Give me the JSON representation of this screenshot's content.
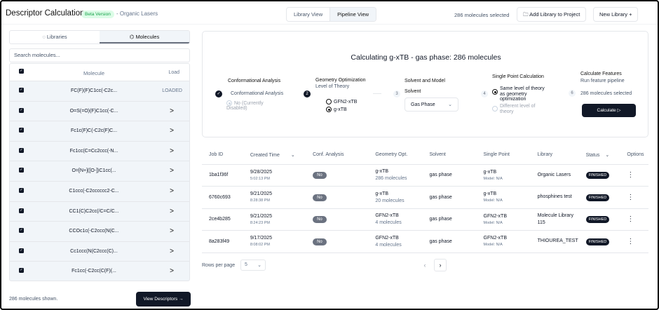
{
  "header": {
    "title": "Descriptor Calculation",
    "badge": "Beta Version",
    "subtitle": "- Organic Lasers",
    "views": [
      "Library View",
      "Pipeline View"
    ],
    "selected_count": "286 molecules selected",
    "add_library": "Add Library to Project",
    "new_library": "New Library +"
  },
  "sidebar": {
    "tabs": [
      "Libraries",
      "Molecules"
    ],
    "search_placeholder": "Search molecules...",
    "col_molecule": "Molecule",
    "col_load": "Load",
    "molecules": [
      {
        "smiles": "FC(F)(F)C1cc(-C2c...",
        "load": "LOADED"
      },
      {
        "smiles": "O=S(=O)(F)C1cc(-C...",
        "load": ">"
      },
      {
        "smiles": "Fc1c(F)C(-C2c(F)C...",
        "load": ">"
      },
      {
        "smiles": "Fc1cc(C=Cc2ccc(-N...",
        "load": ">"
      },
      {
        "smiles": "O=[N+]([O-])C1cc(...",
        "load": ">"
      },
      {
        "smiles": "C1ccc(-C2cccccc2-C...",
        "load": ">"
      },
      {
        "smiles": "CC1(C)C2cc(/C=C/C...",
        "load": ">"
      },
      {
        "smiles": "CCOc1c(-C2ccc(N(C...",
        "load": ">"
      },
      {
        "smiles": "Cc1ccc(N(C2ccc(C)...",
        "load": ">"
      },
      {
        "smiles": "Fc1cc(-C2cc(C(F)(...",
        "load": ">"
      }
    ],
    "footer": "286 molecules shown.",
    "view_descriptors": "View Descriptors →"
  },
  "pipeline": {
    "title": "Calculating g-xTB - gas phase: 286 molecules",
    "step1": {
      "title": "Conformational Analysis",
      "option": "Conformational Analysis",
      "disabled": "No (Currently Disabled)"
    },
    "step2": {
      "num": "2",
      "title": "Geometry Optimization",
      "sub": "Level of Theory",
      "options": [
        "GFN2-xTB",
        "g-xTB"
      ],
      "selected": "g-xTB"
    },
    "step3": {
      "num": "3",
      "title": "Solvent and Model",
      "label": "Solvent",
      "value": "Gas Phase"
    },
    "step4": {
      "num": "4",
      "title": "Single Point Calculation",
      "options": [
        "Same level of theory as geometry optimization",
        "Different level of theory"
      ],
      "selected": "Same level of theory as geometry optimization"
    },
    "step5": {
      "num": "6",
      "title": "Calculate Features",
      "sub": "Run feature pipeline",
      "count": "286 molecules selected",
      "button": "Calculate ▷"
    }
  },
  "jobs": {
    "columns": [
      "Job ID",
      "Created Time",
      "Conf. Analysis",
      "Geometry Opt.",
      "Solvent",
      "Single Point",
      "Library",
      "Status",
      "Options"
    ],
    "rows": [
      {
        "id": "1ba1f36f",
        "date": "9/28/2025",
        "time": "5:02:13 PM",
        "conf": "No",
        "geo": "g-xTB",
        "mols": "286 molecules",
        "solvent": "gas phase",
        "sp": "g-xTB",
        "model": "Model: N/A",
        "library": "Organic Lasers",
        "status": "FINISHED"
      },
      {
        "id": "6760c693",
        "date": "9/21/2025",
        "time": "8:28:38 PM",
        "conf": "No",
        "geo": "g-xTB",
        "mols": "20 molecules",
        "solvent": "gas phase",
        "sp": "g-xTB",
        "model": "Model: N/A",
        "library": "phosphines test",
        "status": "FINISHED"
      },
      {
        "id": "2ce4b285",
        "date": "9/21/2025",
        "time": "8:24:23 PM",
        "conf": "No",
        "geo": "GFN2-xTB",
        "mols": "4 molecules",
        "solvent": "gas phase",
        "sp": "GFN2-xTB",
        "model": "Model: N/A",
        "library": "Molecule Library 115",
        "status": "FINISHED"
      },
      {
        "id": "8a283f49",
        "date": "9/17/2025",
        "time": "8:08:02 PM",
        "conf": "No",
        "geo": "GFN2-xTB",
        "mols": "4 molecules",
        "solvent": "gas phase",
        "sp": "GFN2-xTB",
        "model": "Model: N/A",
        "library": "THIOUREA_TEST",
        "status": "FINISHED"
      }
    ],
    "rows_per_page_label": "Rows per page",
    "rows_per_page": "5"
  }
}
